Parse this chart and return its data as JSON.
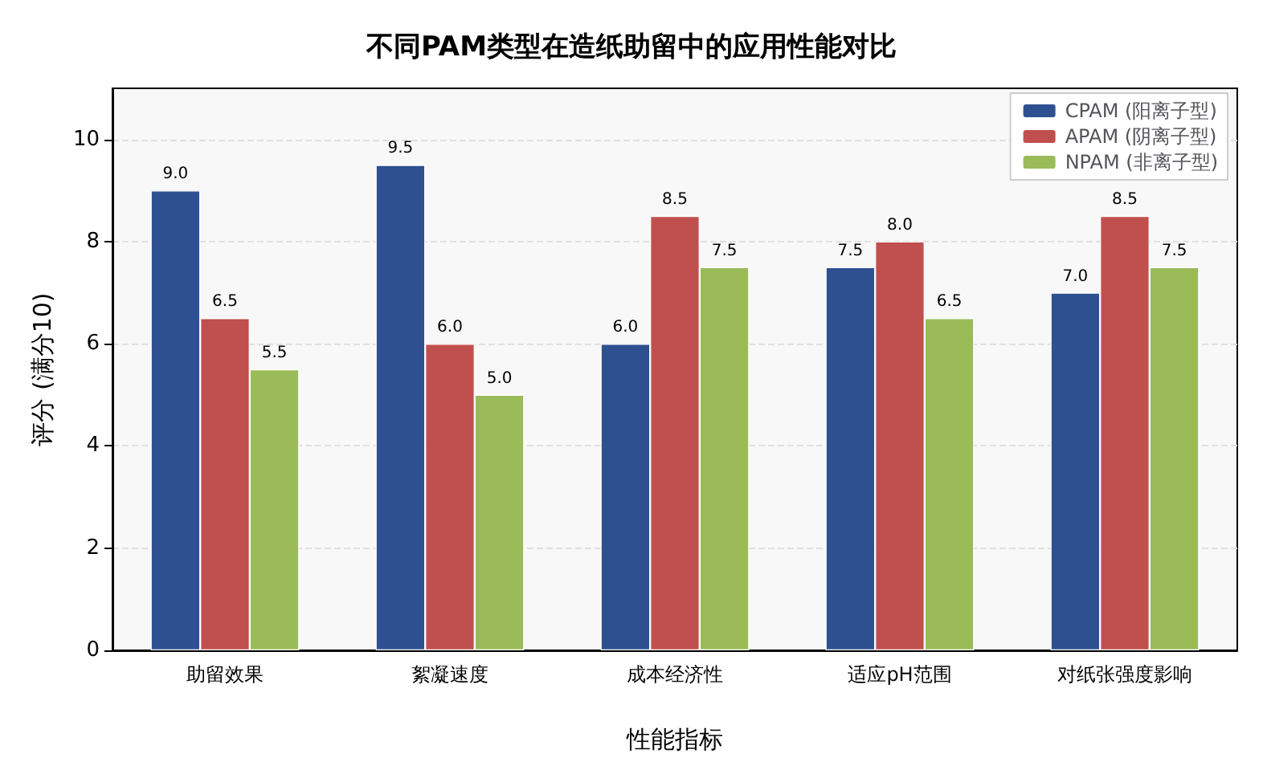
{
  "chart_data": {
    "type": "bar",
    "title": "不同PAM类型在造纸助留中的应用性能对比",
    "xlabel": "性能指标",
    "ylabel": "评分 (满分10)",
    "categories": [
      "助留效果",
      "絮凝速度",
      "成本经济性",
      "适应pH范围",
      "对纸张强度影响"
    ],
    "series": [
      {
        "name": "CPAM (阳离子型)",
        "color": "#2e5090",
        "values": [
          9.0,
          9.5,
          6.0,
          7.5,
          7.0
        ],
        "value_labels": [
          "9.0",
          "9.5",
          "6.0",
          "7.5",
          "7.0"
        ]
      },
      {
        "name": "APAM (阴离子型)",
        "color": "#c0504d",
        "values": [
          6.5,
          6.0,
          8.5,
          8.0,
          8.5
        ],
        "value_labels": [
          "6.5",
          "6.0",
          "8.5",
          "8.0",
          "8.5"
        ]
      },
      {
        "name": "NPAM (非离子型)",
        "color": "#9bbb59",
        "values": [
          5.5,
          5.0,
          7.5,
          6.5,
          7.5
        ],
        "value_labels": [
          "5.5",
          "5.0",
          "7.5",
          "6.5",
          "7.5"
        ]
      }
    ],
    "ylim": [
      0,
      11
    ],
    "yticks": [
      0,
      2,
      4,
      6,
      8,
      10
    ],
    "grid": "y",
    "legend": "top right"
  }
}
